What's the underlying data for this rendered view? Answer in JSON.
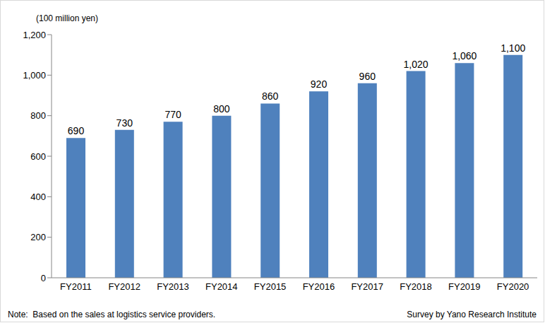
{
  "chart_data": {
    "type": "bar",
    "y_label": "(100 million yen)",
    "categories": [
      "FY2011",
      "FY2012",
      "FY2013",
      "FY2014",
      "FY2015",
      "FY2016",
      "FY2017",
      "FY2018",
      "FY2019",
      "FY2020"
    ],
    "values": [
      690,
      730,
      770,
      800,
      860,
      920,
      960,
      1020,
      1060,
      1100
    ],
    "value_labels": [
      "690",
      "730",
      "770",
      "800",
      "860",
      "920",
      "960",
      "1,020",
      "1,060",
      "1,100"
    ],
    "data_labels": true,
    "color": "#4f81bd",
    "ylim": [
      0,
      1200
    ],
    "yticks": [
      0,
      200,
      400,
      600,
      800,
      {
        "value": 1000,
        "label": "1,000"
      },
      {
        "value": 1200,
        "label": "1,200"
      }
    ],
    "grid": false,
    "note": "Note:  Based on the sales at logistics service providers.",
    "source": "Survey by Yano Research Institute"
  }
}
